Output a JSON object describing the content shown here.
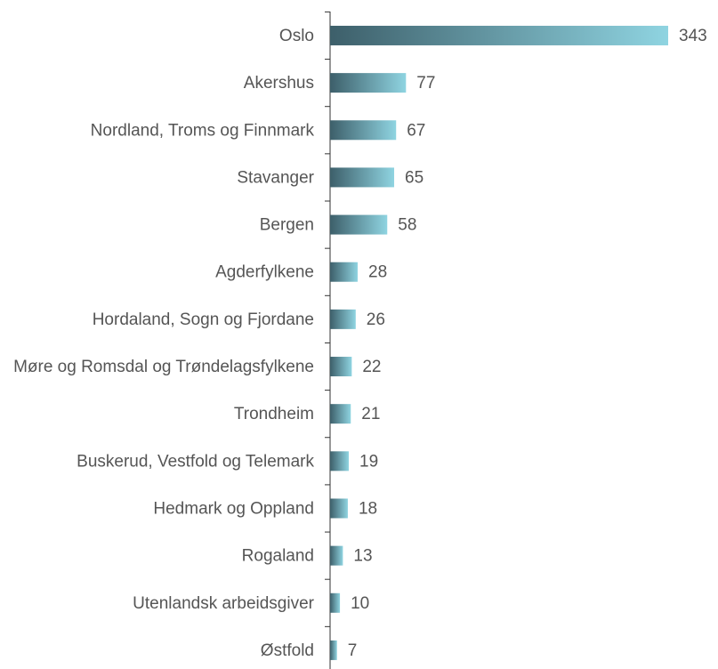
{
  "chart_data": {
    "type": "bar",
    "orientation": "horizontal",
    "categories": [
      "Oslo",
      "Akershus",
      "Nordland, Troms og Finnmark",
      "Stavanger",
      "Bergen",
      "Agderfylkene",
      "Hordaland, Sogn og Fjordane",
      "Møre og Romsdal og Trøndelagsfylkene",
      "Trondheim",
      "Buskerud, Vestfold og Telemark",
      "Hedmark og Oppland",
      "Rogaland",
      "Utenlandsk arbeidsgiver",
      "Østfold"
    ],
    "values": [
      343,
      77,
      67,
      65,
      58,
      28,
      26,
      22,
      21,
      19,
      18,
      13,
      10,
      7
    ],
    "gradient": [
      "#3d5f6a",
      "#8fd4e1"
    ]
  }
}
